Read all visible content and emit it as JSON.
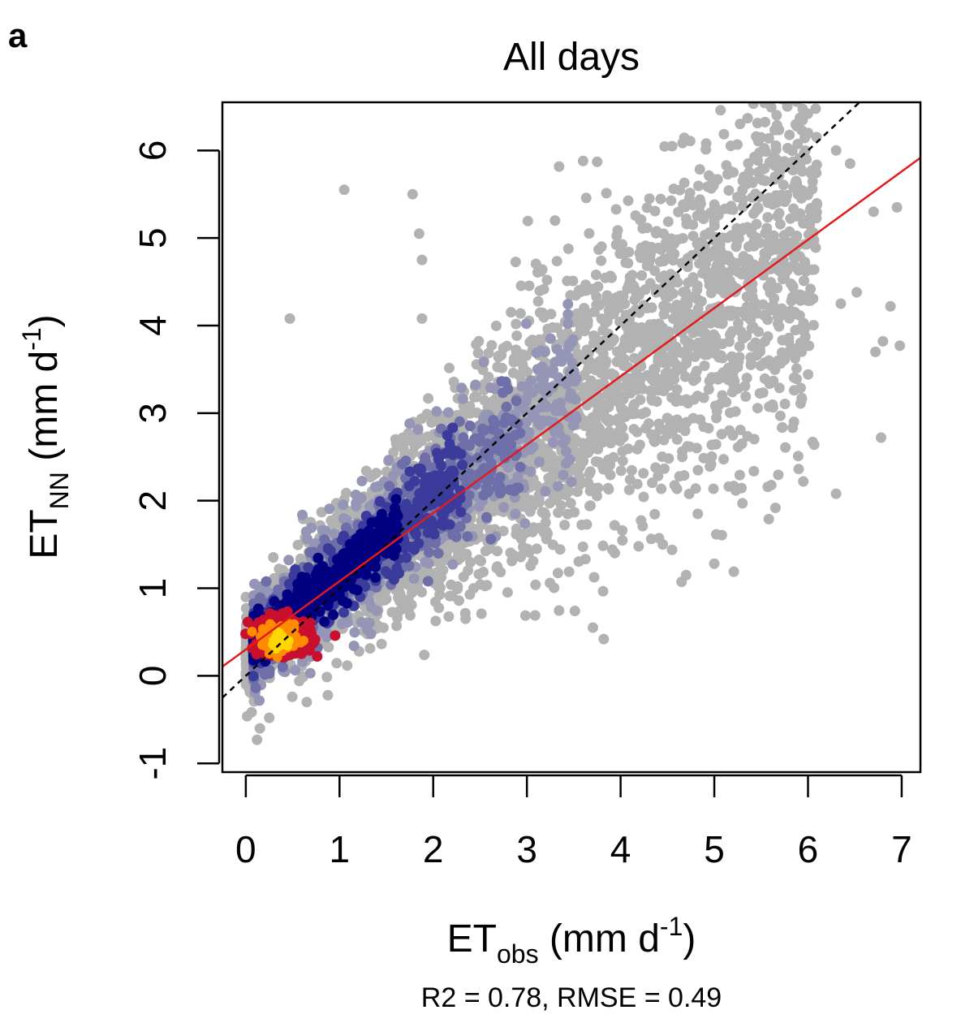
{
  "panel_label": "a",
  "chart_data": {
    "type": "scatter",
    "title": "All days",
    "xlabel": {
      "main": "ET",
      "sub": "obs",
      "unit_pre": " (mm d",
      "sup": "-1",
      "unit_post": ")"
    },
    "ylabel": {
      "main": "ET",
      "sub": "NN",
      "unit_pre": " (mm d",
      "sup": "-1",
      "unit_post": ")"
    },
    "xlim": [
      -0.25,
      7.2
    ],
    "ylim": [
      -1.1,
      6.55
    ],
    "xticks": [
      0,
      1,
      2,
      3,
      4,
      5,
      6,
      7
    ],
    "yticks": [
      -1,
      0,
      1,
      2,
      3,
      4,
      5,
      6
    ],
    "grid": false,
    "legend": "none",
    "stats_label": "R2 = 0.78, RMSE = 0.49",
    "reference_lines": [
      {
        "name": "1:1 line",
        "slope": 1.0,
        "intercept": 0.0,
        "style": "dashed",
        "color": "#000000"
      },
      {
        "name": "regression fit",
        "slope": 0.78,
        "intercept": 0.3,
        "style": "solid",
        "color": "#e31a1c"
      }
    ],
    "density_colors": [
      "#b2b2b2",
      "#9595b5",
      "#6e6ea8",
      "#3b3b9c",
      "#000080",
      "#c8102e",
      "#ff8c00",
      "#ffd700"
    ],
    "point_cloud": {
      "description_free": true,
      "center_band": {
        "x": [
          0.0,
          7.0
        ],
        "fit_slope": 0.78,
        "fit_intercept": 0.3
      },
      "outliers": [
        [
          1.05,
          5.55
        ],
        [
          1.78,
          5.5
        ],
        [
          5.5,
          6.15
        ],
        [
          6.0,
          6.2
        ],
        [
          6.3,
          6.0
        ],
        [
          6.45,
          5.85
        ],
        [
          6.95,
          5.35
        ],
        [
          6.7,
          5.3
        ],
        [
          6.78,
          2.72
        ],
        [
          6.3,
          2.08
        ],
        [
          6.98,
          3.77
        ],
        [
          6.88,
          4.22
        ],
        [
          3.3,
          5.2
        ],
        [
          1.88,
          4.08
        ],
        [
          3.82,
          0.42
        ],
        [
          5.0,
          1.28
        ],
        [
          4.7,
          1.15
        ],
        [
          0.47,
          4.08
        ],
        [
          1.85,
          5.05
        ],
        [
          1.88,
          4.75
        ],
        [
          0.12,
          -0.73
        ],
        [
          0.15,
          -0.6
        ],
        [
          0.25,
          -0.48
        ],
        [
          0.65,
          -0.3
        ],
        [
          3.6,
          5.88
        ],
        [
          3.75,
          5.87
        ],
        [
          5.95,
          2.22
        ],
        [
          6.05,
          2.67
        ],
        [
          5.85,
          2.9
        ],
        [
          6.8,
          3.82
        ],
        [
          6.72,
          3.7
        ],
        [
          6.52,
          4.38
        ],
        [
          6.35,
          4.25
        ],
        [
          5.3,
          1.97
        ],
        [
          4.45,
          1.5
        ]
      ]
    }
  }
}
